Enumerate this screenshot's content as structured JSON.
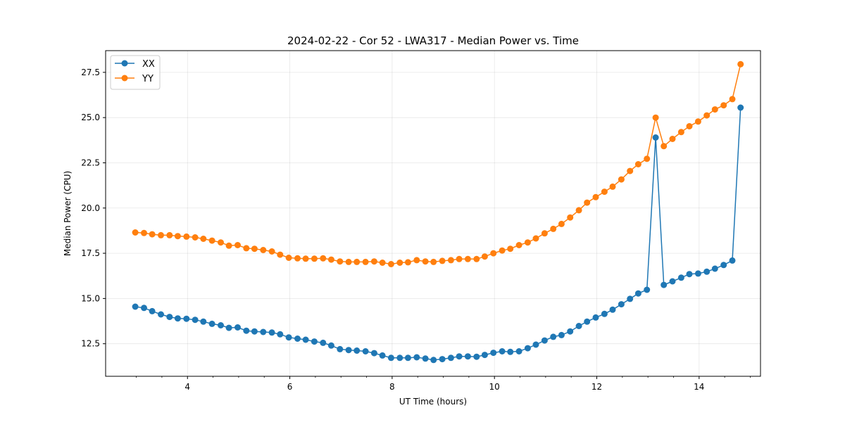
{
  "chart_data": {
    "type": "line",
    "title": "2024-02-22 - Cor 52 - LWA317 - Median Power vs. Time",
    "xlabel": "UT Time (hours)",
    "ylabel": "Median Power (CPU)",
    "xlim": [
      2.4,
      15.2
    ],
    "ylim": [
      10.7,
      28.7
    ],
    "xticks": [
      4,
      6,
      8,
      10,
      12,
      14
    ],
    "xtick_labels": [
      "4",
      "6",
      "8",
      "10",
      "12",
      "14"
    ],
    "yticks": [
      12.5,
      15.0,
      17.5,
      20.0,
      22.5,
      25.0,
      27.5
    ],
    "ytick_labels": [
      "12.5",
      "15.0",
      "17.5",
      "20.0",
      "22.5",
      "25.0",
      "27.5"
    ],
    "grid": true,
    "legend_position": "upper-left",
    "x": [
      2.98,
      3.15,
      3.31,
      3.48,
      3.65,
      3.81,
      3.98,
      4.15,
      4.31,
      4.48,
      4.65,
      4.81,
      4.98,
      5.15,
      5.31,
      5.48,
      5.65,
      5.81,
      5.98,
      6.15,
      6.31,
      6.48,
      6.65,
      6.81,
      6.98,
      7.15,
      7.31,
      7.48,
      7.65,
      7.81,
      7.98,
      8.15,
      8.31,
      8.48,
      8.65,
      8.81,
      8.98,
      9.15,
      9.31,
      9.48,
      9.65,
      9.81,
      9.98,
      10.15,
      10.31,
      10.48,
      10.65,
      10.81,
      10.98,
      11.15,
      11.31,
      11.48,
      11.65,
      11.81,
      11.98,
      12.15,
      12.31,
      12.48,
      12.65,
      12.81,
      12.98,
      13.15,
      13.31,
      13.48,
      13.65,
      13.81,
      13.98,
      14.15,
      14.31,
      14.48,
      14.65,
      14.81
    ],
    "series": [
      {
        "name": "XX",
        "color": "#1f77b4",
        "values": [
          14.55,
          14.48,
          14.3,
          14.12,
          13.98,
          13.9,
          13.88,
          13.82,
          13.72,
          13.6,
          13.52,
          13.38,
          13.4,
          13.22,
          13.18,
          13.15,
          13.12,
          13.02,
          12.85,
          12.78,
          12.72,
          12.62,
          12.55,
          12.4,
          12.2,
          12.15,
          12.12,
          12.08,
          11.98,
          11.85,
          11.72,
          11.72,
          11.72,
          11.75,
          11.68,
          11.6,
          11.65,
          11.72,
          11.8,
          11.8,
          11.78,
          11.88,
          12.0,
          12.08,
          12.05,
          12.08,
          12.25,
          12.45,
          12.68,
          12.88,
          12.98,
          13.18,
          13.48,
          13.72,
          13.95,
          14.15,
          14.38,
          14.68,
          14.98,
          15.28,
          15.48,
          23.9,
          15.75,
          15.95,
          16.15,
          16.35,
          16.38,
          16.48,
          16.65,
          16.85,
          17.1,
          25.55
        ]
      },
      {
        "name": "YY",
        "color": "#ff7f0e",
        "values": [
          18.65,
          18.62,
          18.55,
          18.5,
          18.5,
          18.45,
          18.42,
          18.38,
          18.3,
          18.2,
          18.1,
          17.92,
          17.95,
          17.78,
          17.75,
          17.68,
          17.6,
          17.42,
          17.25,
          17.22,
          17.2,
          17.2,
          17.22,
          17.15,
          17.05,
          17.02,
          17.02,
          17.02,
          17.05,
          16.98,
          16.9,
          16.98,
          17.0,
          17.12,
          17.05,
          17.02,
          17.08,
          17.12,
          17.18,
          17.18,
          17.18,
          17.32,
          17.5,
          17.65,
          17.75,
          17.95,
          18.1,
          18.32,
          18.6,
          18.85,
          19.12,
          19.48,
          19.88,
          20.3,
          20.6,
          20.9,
          21.18,
          21.58,
          22.05,
          22.42,
          22.72,
          25.0,
          23.42,
          23.82,
          24.2,
          24.52,
          24.78,
          25.12,
          25.45,
          25.68,
          26.02,
          27.95
        ]
      }
    ]
  }
}
